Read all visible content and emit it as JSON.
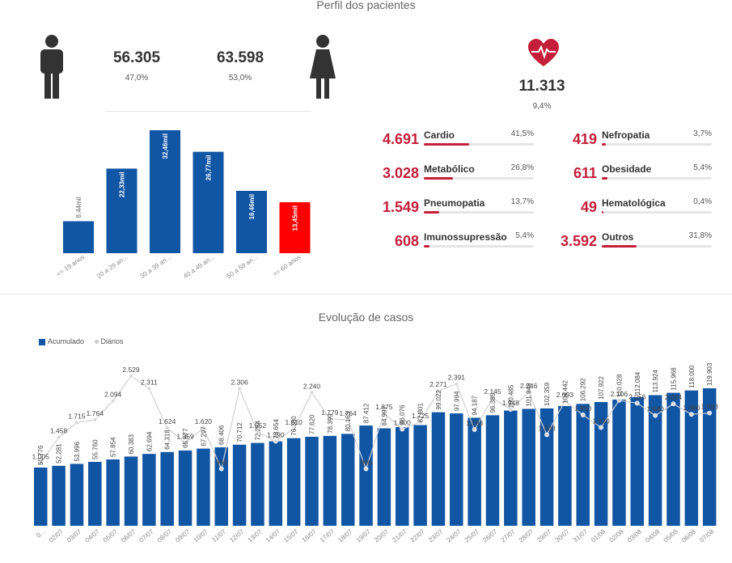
{
  "profile": {
    "title": "Perfil dos pacientes",
    "male": {
      "value": "56.305",
      "pct": "47,0%"
    },
    "female": {
      "value": "63.598",
      "pct": "53,0%"
    },
    "comorbid": {
      "value": "11.313",
      "pct": "9,4%"
    }
  },
  "age_chart": {
    "type": "bar",
    "categories": [
      "<= 19 anos",
      "20 a 29 an...",
      "30 a 39 an...",
      "40 a 49 an...",
      "50 a 59 an...",
      ">= 60 anos"
    ],
    "values": [
      8.44,
      22.33,
      32.46,
      26.77,
      16.46,
      13.45
    ],
    "labels": [
      "8,44mil",
      "22,33mil",
      "32,46mil",
      "26,77mil",
      "16,46mil",
      "13,45mil"
    ],
    "colors": [
      "#1155a5",
      "#1155a5",
      "#1155a5",
      "#1155a5",
      "#1155a5",
      "#ff0000"
    ],
    "ylim": [
      0,
      32.46
    ]
  },
  "conditions": [
    {
      "value": "4.691",
      "name": "Cardio",
      "pct": "41,5%",
      "frac": 0.415
    },
    {
      "value": "3.028",
      "name": "Metabólico",
      "pct": "26,8%",
      "frac": 0.268
    },
    {
      "value": "1.549",
      "name": "Pneumopatia",
      "pct": "13,7%",
      "frac": 0.137
    },
    {
      "value": "608",
      "name": "Imunossupressão",
      "pct": "5,4%",
      "frac": 0.054
    },
    {
      "value": "419",
      "name": "Nefropatia",
      "pct": "3,7%",
      "frac": 0.037
    },
    {
      "value": "611",
      "name": "Obesidade",
      "pct": "5,4%",
      "frac": 0.054
    },
    {
      "value": "49",
      "name": "Hematológica",
      "pct": "0,4%",
      "frac": 0.004
    },
    {
      "value": "3.592",
      "name": "Outros",
      "pct": "31,8%",
      "frac": 0.318
    }
  ],
  "chart_data": {
    "type": "bar",
    "title": "Evolução de casos",
    "legend": [
      "Acumulado",
      "Diários"
    ],
    "categories": [
      "0...",
      "02/07",
      "03/07",
      "04/07",
      "05/07",
      "06/07",
      "07/07",
      "08/07",
      "09/07",
      "10/07",
      "11/07",
      "12/07",
      "13/07",
      "14/07",
      "15/07",
      "16/07",
      "17/07",
      "18/07",
      "19/07",
      "20/07",
      "21/07",
      "22/07",
      "23/07",
      "24/07",
      "25/07",
      "26/07",
      "27/07",
      "28/07",
      "29/07",
      "30/07",
      "31/07",
      "01/08",
      "02/08",
      "03/08",
      "04/08",
      "05/08",
      "06/08",
      "07/08"
    ],
    "series": [
      {
        "name": "Acumulado",
        "type": "bar",
        "values": [
          50776,
          52281,
          53996,
          55760,
          57854,
          60383,
          62694,
          64318,
          65677,
          67297,
          68406,
          70712,
          72264,
          73654,
          76380,
          77620,
          78399,
          80163,
          87412,
          84997,
          86076,
          87801,
          99022,
          97994,
          94187,
          96385,
          100485,
          101948,
          102359,
          104442,
          106292,
          107922,
          110028,
          112084,
          113924,
          115968,
          118000,
          119903
        ],
        "labels": [
          "50.776",
          "52.281",
          "53.996",
          "55.760",
          "57.854",
          "60.383",
          "62.694",
          "64.318",
          "65.677",
          "67.297",
          "68.406",
          "70.712",
          "72.264",
          "73.654",
          "76.380",
          "77.620",
          "78.399",
          "80.163",
          "87.412",
          "84.997",
          "86.076",
          "87.801",
          "99.022",
          "97.994",
          "94.187",
          "96.385",
          "100.485",
          "101.948",
          "102.359",
          "104.442",
          "106.292",
          "107.922",
          "110.028",
          "112.084",
          "113.924",
          "115.968",
          "118.000",
          "119.903"
        ]
      },
      {
        "name": "Diários",
        "type": "line",
        "values": [
          1005,
          1458,
          1715,
          1764,
          2094,
          2529,
          2311,
          1624,
          1359,
          1620,
          906,
          2306,
          1552,
          1390,
          1610,
          2240,
          1779,
          1764,
          906,
          1875,
          1600,
          1725,
          2271,
          2391,
          1593,
          2145,
          1948,
          2246,
          1503,
          2093,
          1850,
          1630,
          2106,
          2056,
          1840,
          2044,
          1860,
          1883
        ],
        "labels": [
          "1.005",
          "1.458",
          "1.715",
          "1.764",
          "2.094",
          "2.529",
          "2.311",
          "1.624",
          "1.359",
          "1.620",
          "906",
          "2.306",
          "1.552",
          "1.390",
          "1.610",
          "2.240",
          "1.779",
          "1.764",
          "906",
          "1.875",
          "1.600",
          "1.725",
          "2.271",
          "2.391",
          "1.593",
          "2.145",
          "1.948",
          "2.246",
          "1.503",
          "2.093",
          "1.850",
          "1.630",
          "2.106",
          "2.056",
          "1.840",
          "2.044",
          "1.860",
          "1.883"
        ]
      }
    ],
    "ylim_bars": [
      0,
      119903
    ],
    "ylim_line": [
      0,
      2529
    ]
  }
}
